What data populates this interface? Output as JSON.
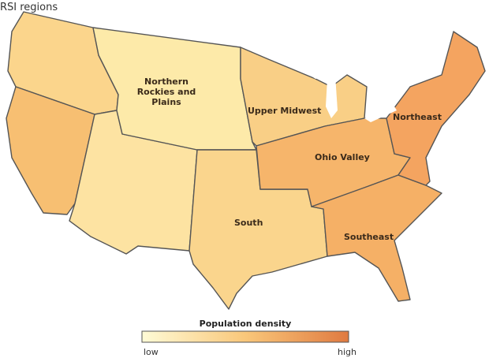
{
  "title": "RSI regions",
  "regions": [
    {
      "label": "Northern Rockies and Plains"
    },
    {
      "label": "Upper Midwest"
    },
    {
      "label": "Northeast"
    },
    {
      "label": "Ohio Valley"
    },
    {
      "label": "South"
    },
    {
      "label": "Southeast"
    }
  ],
  "legend": {
    "title": "Population density",
    "low": "low",
    "high": "high"
  }
}
